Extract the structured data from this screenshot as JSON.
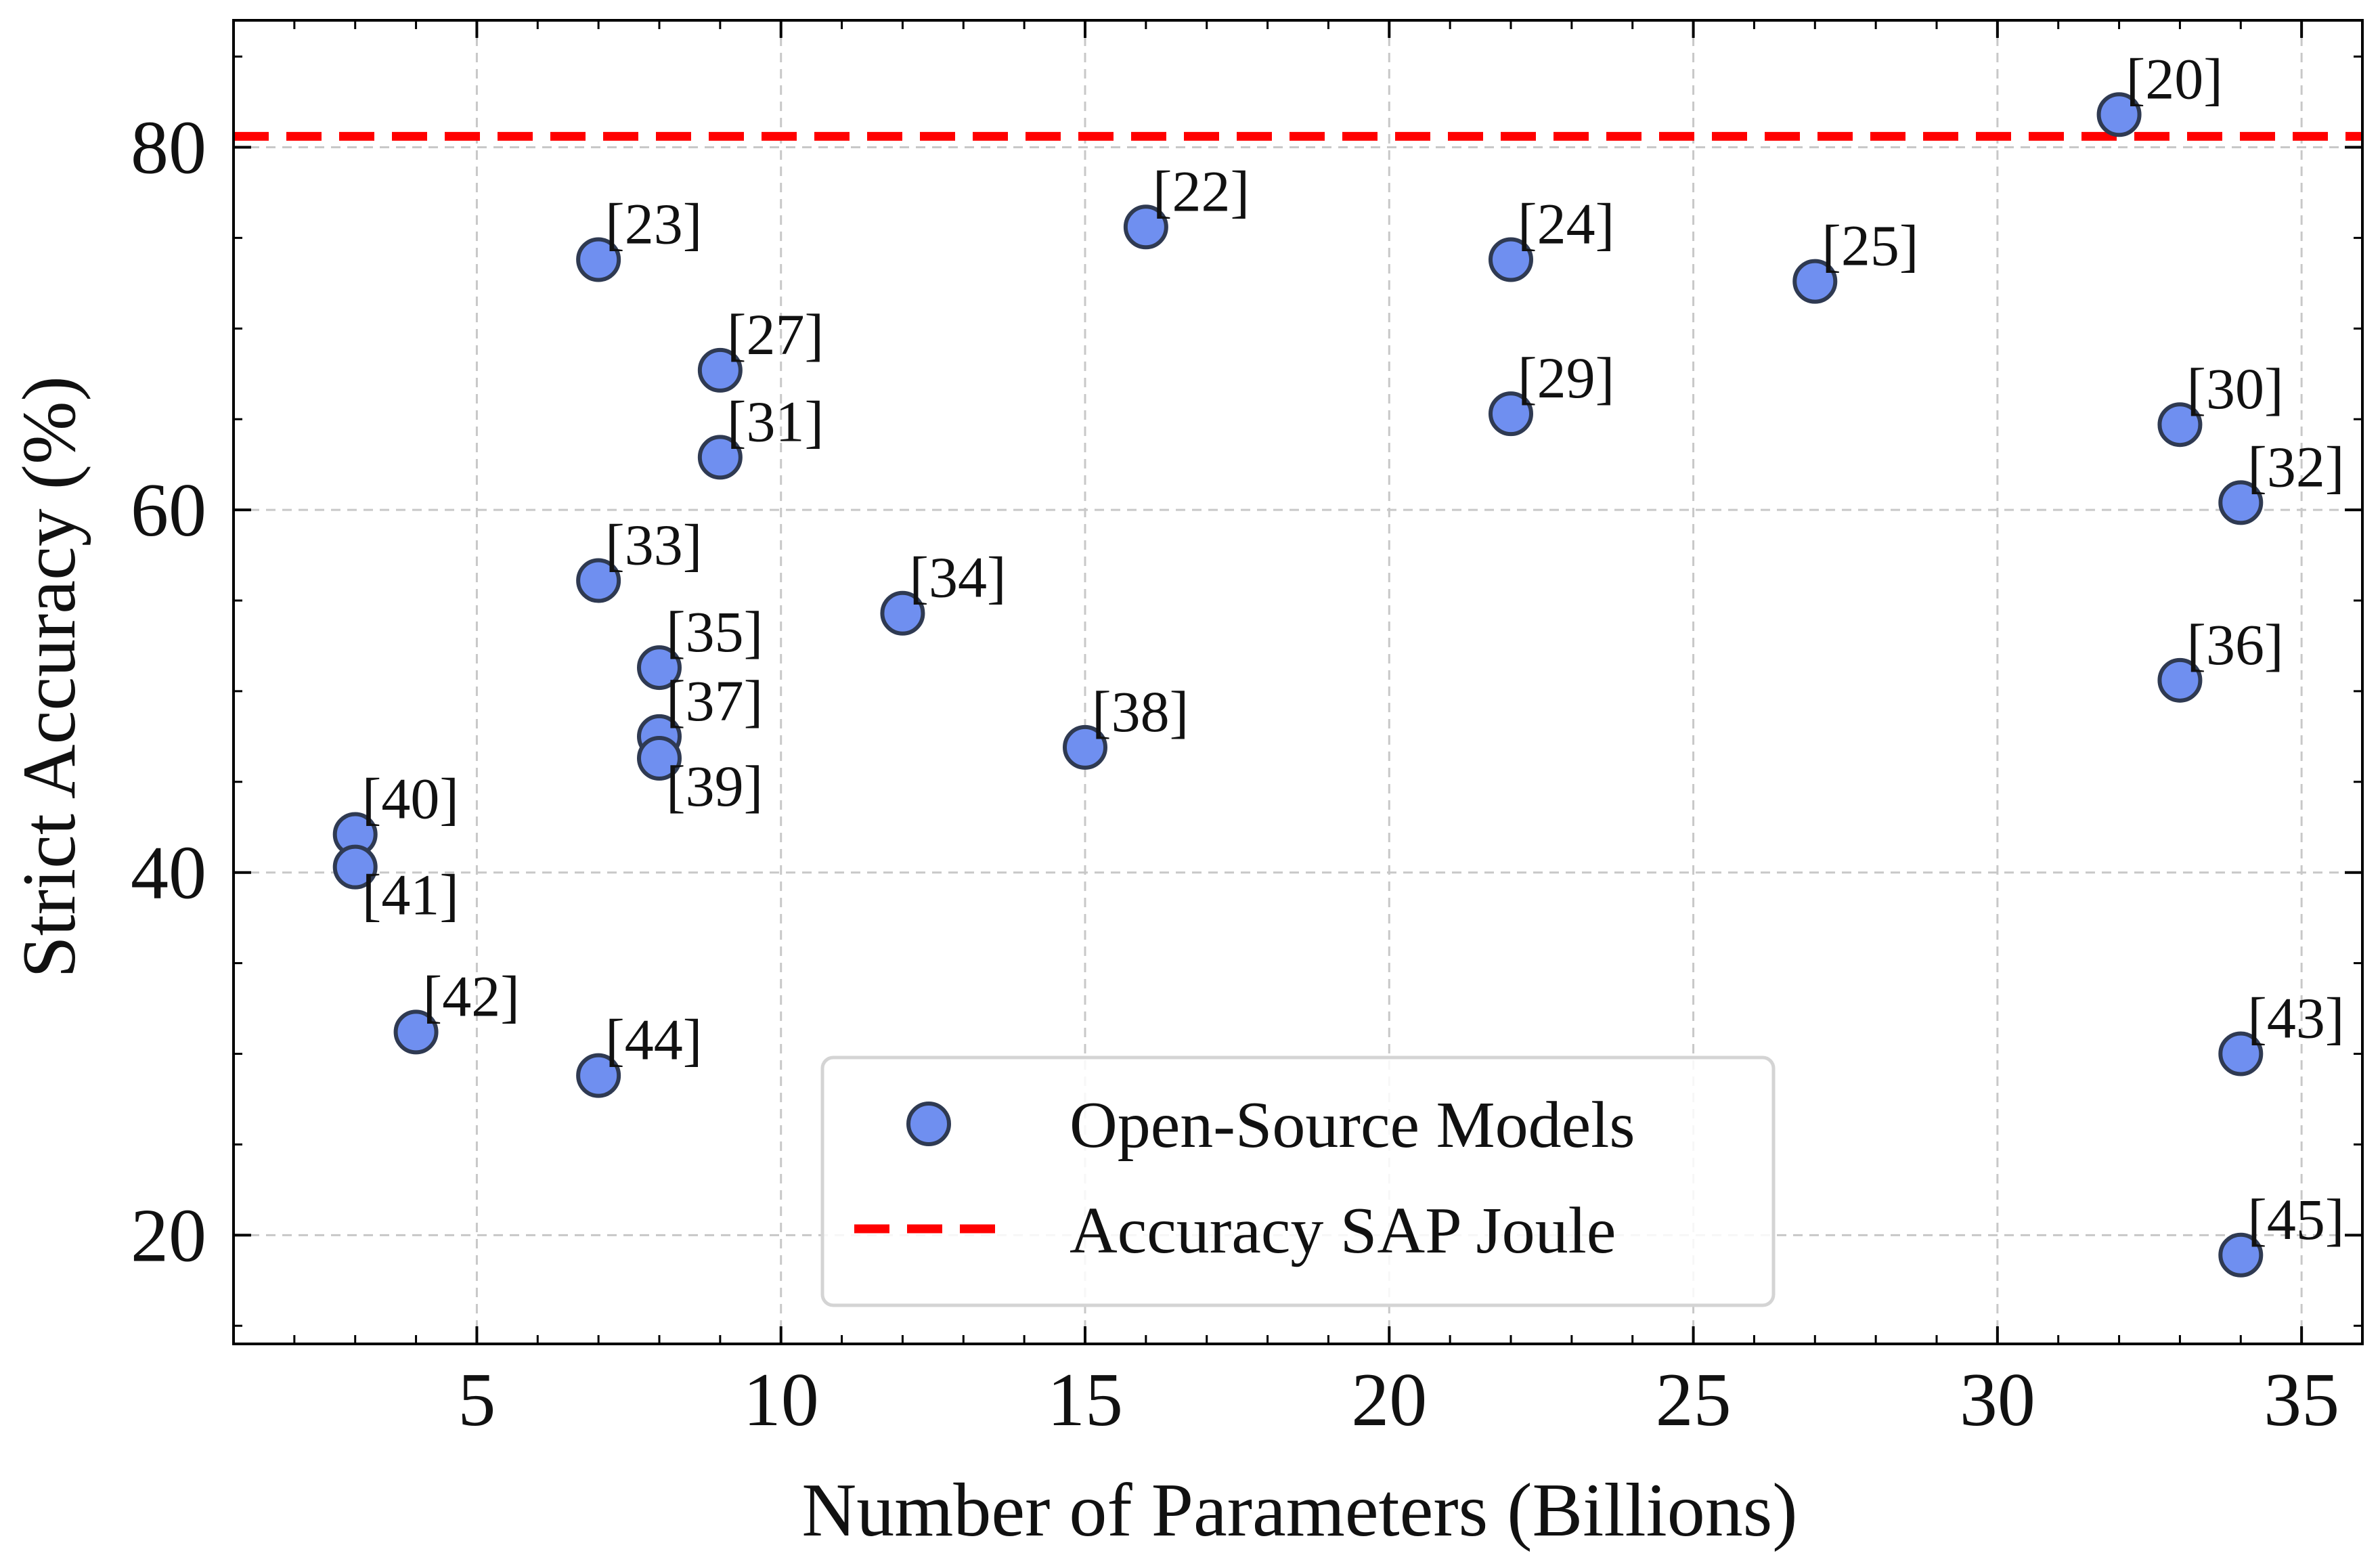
{
  "chart_data": {
    "type": "scatter",
    "title": "",
    "xlabel": "Number of Parameters (Billions)",
    "ylabel": "Strict Accuracy (%)",
    "xlim": [
      1,
      36
    ],
    "ylim": [
      14,
      87
    ],
    "xticks": [
      5,
      10,
      15,
      20,
      25,
      30,
      35
    ],
    "yticks": [
      20,
      40,
      60,
      80
    ],
    "grid": true,
    "legend_position": "bottom-center",
    "colors": {
      "marker_fill": "#6f8ff0",
      "marker_edge": "#2f3a52",
      "reference_line": "#ff0000"
    },
    "series": [
      {
        "name": "Open-Source Models",
        "kind": "scatter",
        "points": [
          {
            "label": "[20]",
            "x": 32,
            "y": 81.8
          },
          {
            "label": "[22]",
            "x": 16,
            "y": 75.6
          },
          {
            "label": "[23]",
            "x": 7,
            "y": 73.8
          },
          {
            "label": "[24]",
            "x": 22,
            "y": 73.8
          },
          {
            "label": "[25]",
            "x": 27,
            "y": 72.6
          },
          {
            "label": "[27]",
            "x": 9,
            "y": 67.7
          },
          {
            "label": "[29]",
            "x": 22,
            "y": 65.3
          },
          {
            "label": "[30]",
            "x": 33,
            "y": 64.7
          },
          {
            "label": "[31]",
            "x": 9,
            "y": 62.9
          },
          {
            "label": "[32]",
            "x": 34,
            "y": 60.4
          },
          {
            "label": "[33]",
            "x": 7,
            "y": 56.1
          },
          {
            "label": "[34]",
            "x": 12,
            "y": 54.3
          },
          {
            "label": "[35]",
            "x": 8,
            "y": 51.3
          },
          {
            "label": "[36]",
            "x": 33,
            "y": 50.6
          },
          {
            "label": "[37]",
            "x": 8,
            "y": 47.5
          },
          {
            "label": "[38]",
            "x": 15,
            "y": 46.9
          },
          {
            "label": "[39]",
            "x": 8,
            "y": 46.3
          },
          {
            "label": "[40]",
            "x": 3,
            "y": 42.1
          },
          {
            "label": "[41]",
            "x": 3,
            "y": 40.3
          },
          {
            "label": "[42]",
            "x": 4,
            "y": 31.2
          },
          {
            "label": "[43]",
            "x": 34,
            "y": 30.0
          },
          {
            "label": "[44]",
            "x": 7,
            "y": 28.8
          },
          {
            "label": "[45]",
            "x": 34,
            "y": 18.9
          }
        ]
      },
      {
        "name": "Accuracy SAP Joule",
        "kind": "hline",
        "y": 80.6
      }
    ]
  }
}
